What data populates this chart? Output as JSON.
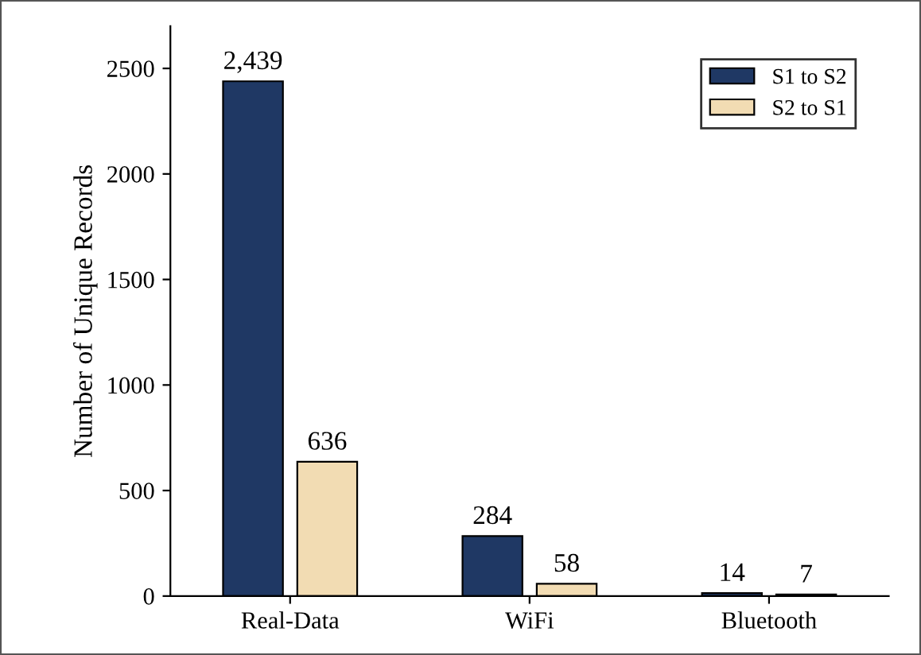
{
  "chart_data": {
    "type": "bar",
    "ylabel": "Number of Unique Records",
    "categories": [
      "Real-Data",
      "WiFi",
      "Bluetooth"
    ],
    "series": [
      {
        "name": "S1 to S2",
        "color": "#1f3864",
        "values": [
          2439,
          284,
          14
        ],
        "value_labels": [
          "2,439",
          "284",
          "14"
        ]
      },
      {
        "name": "S2 to S1",
        "color": "#f2dcb3",
        "values": [
          636,
          58,
          7
        ],
        "value_labels": [
          "636",
          "58",
          "7"
        ]
      }
    ],
    "ylim": [
      0,
      2700
    ],
    "yticks": [
      0,
      500,
      1000,
      1500,
      2000,
      2500
    ],
    "legend": "top right",
    "grid": false
  }
}
